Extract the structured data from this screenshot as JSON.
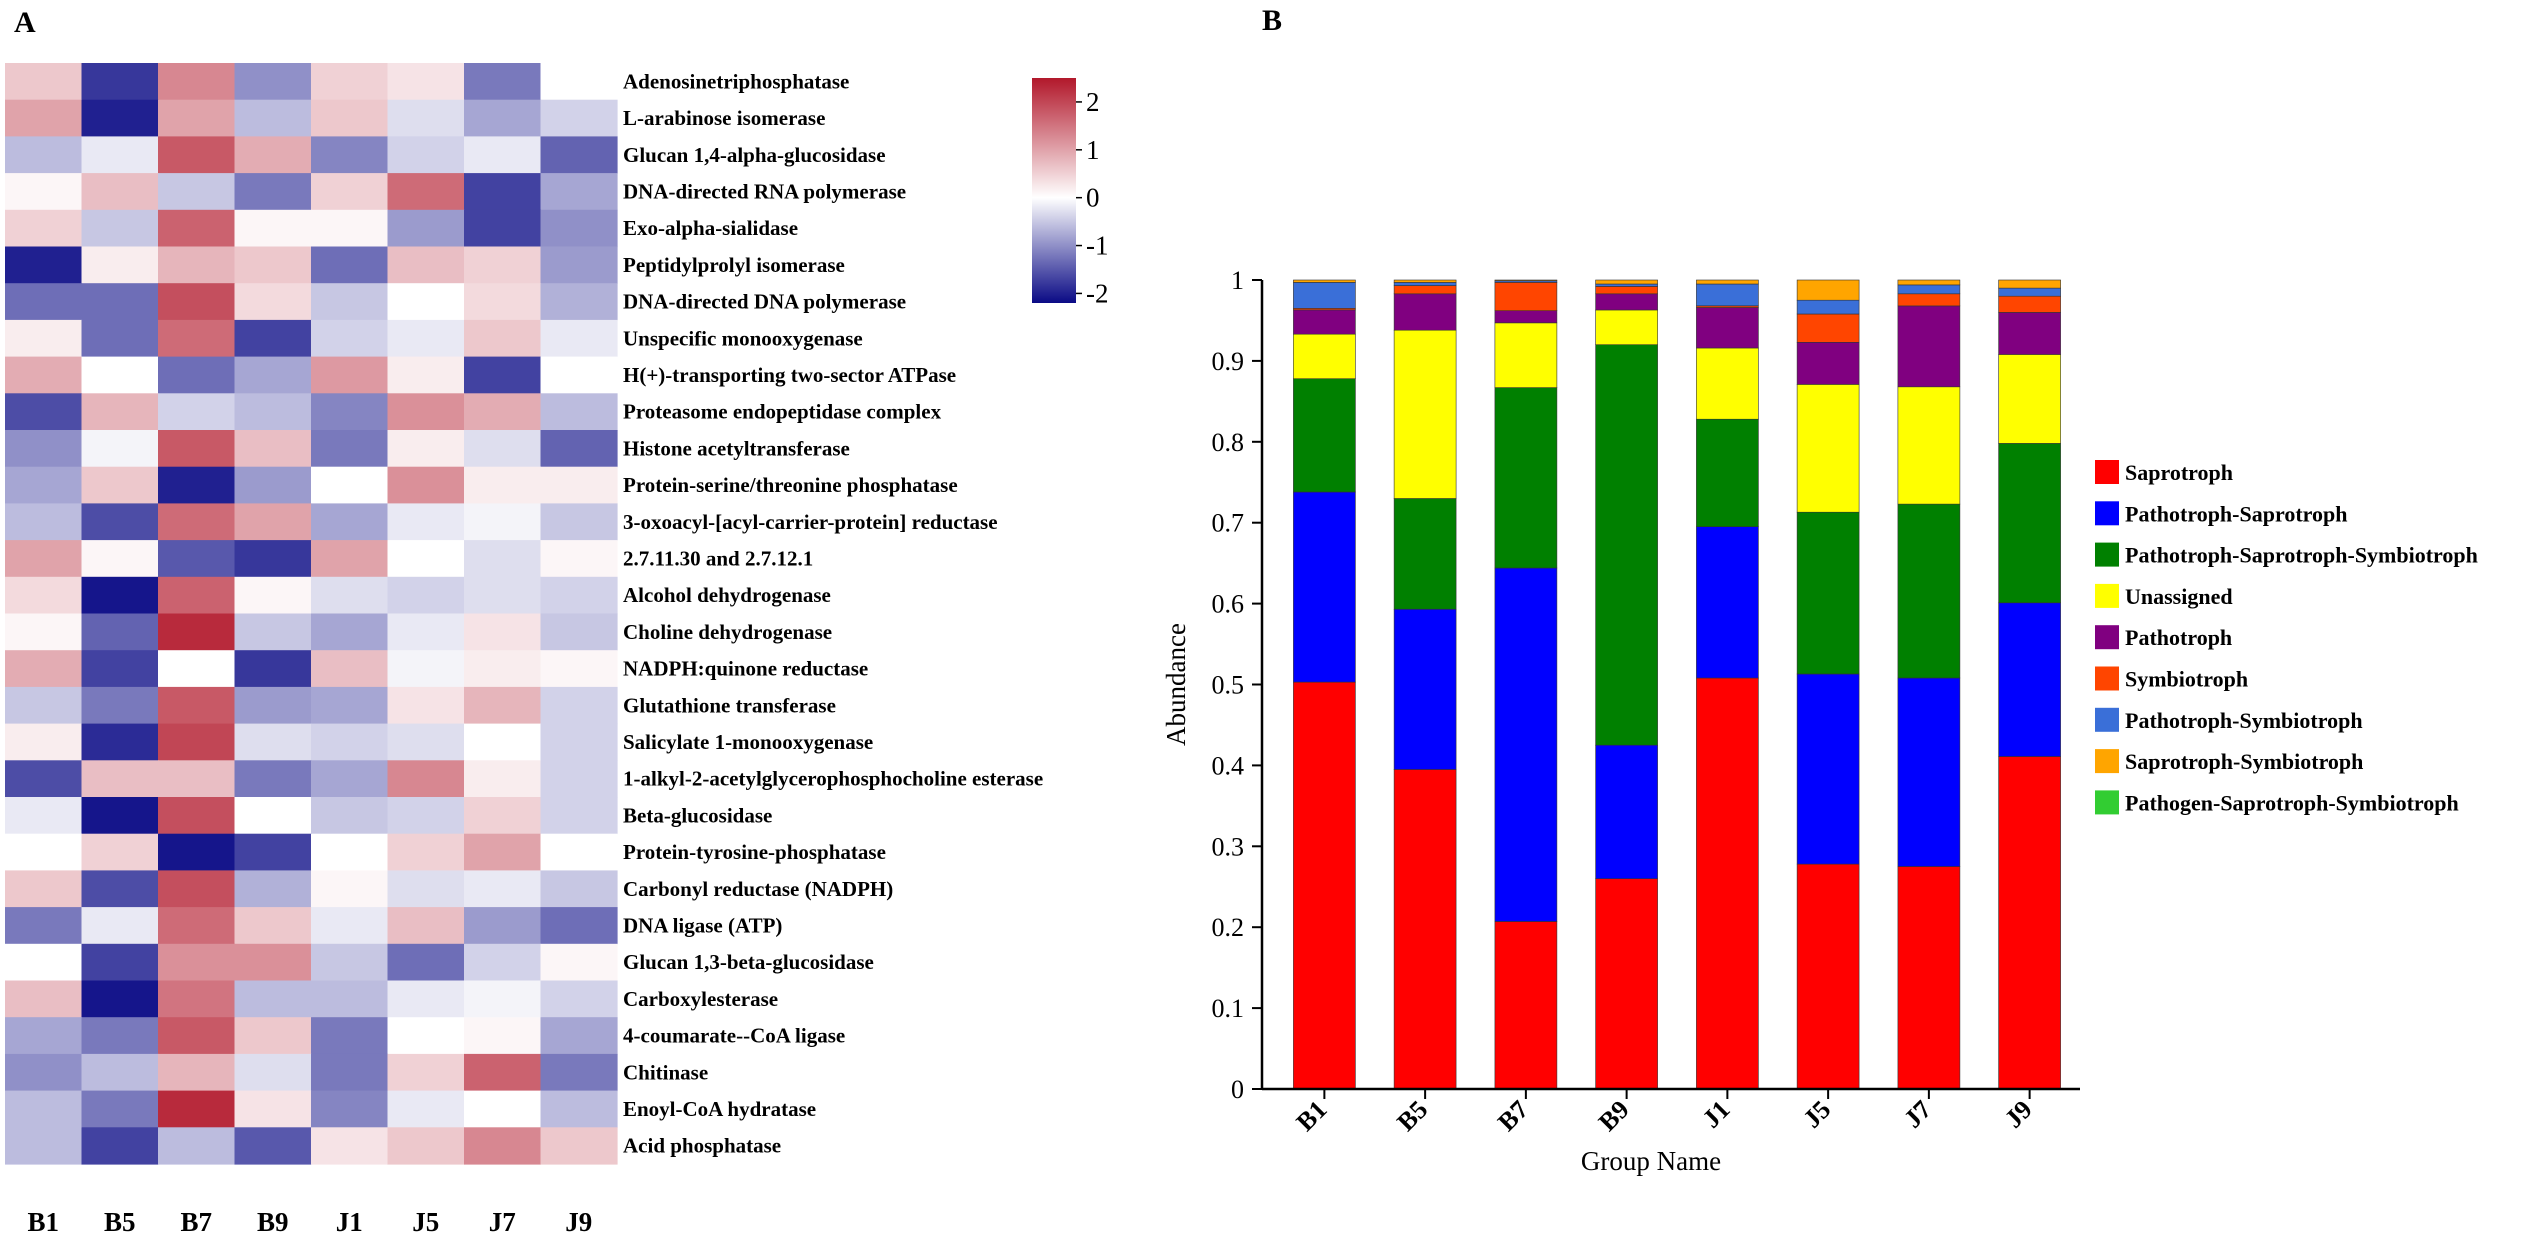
{
  "panel_labels": {
    "a": "A",
    "b": "B"
  },
  "chart_data": [
    {
      "type": "heatmap",
      "panel": "A",
      "columns": [
        "B1",
        "B5",
        "B7",
        "B9",
        "J1",
        "J5",
        "J7",
        "J9"
      ],
      "rows": [
        "Adenosinetriphosphatase",
        "L-arabinose isomerase",
        "Glucan 1,4-alpha-glucosidase",
        "DNA-directed RNA polymerase",
        "Exo-alpha-sialidase",
        "Peptidylprolyl isomerase",
        "DNA-directed DNA polymerase",
        "Unspecific monooxygenase",
        "H(+)-transporting two-sector ATPase",
        "Proteasome endopeptidase complex",
        "Histone acetyltransferase",
        "Protein-serine/threonine phosphatase",
        "3-oxoacyl-[acyl-carrier-protein] reductase",
        "2.7.11.30 and 2.7.12.1",
        "Alcohol dehydrogenase",
        "Choline dehydrogenase",
        "NADPH:quinone reductase",
        "Glutathione transferase",
        "Salicylate 1-monooxygenase",
        "1-alkyl-2-acetylglycerophosphocholine esterase",
        "Beta-glucosidase",
        "Protein-tyrosine-phosphatase",
        "Carbonyl reductase (NADPH)",
        "DNA ligase (ATP)",
        "Glucan 1,3-beta-glucosidase",
        "Carboxylesterase",
        "4-coumarate--CoA ligase",
        "Chitinase",
        "Enoyl-CoA hydratase",
        "Acid phosphatase"
      ],
      "values": [
        [
          0.6,
          -1.8,
          1.3,
          -1.0,
          0.5,
          0.3,
          -1.2,
          0.0
        ],
        [
          1.0,
          -2.0,
          1.0,
          -0.6,
          0.6,
          -0.3,
          -0.8,
          -0.4
        ],
        [
          -0.6,
          -0.2,
          1.8,
          0.9,
          -1.1,
          -0.4,
          -0.2,
          -1.4
        ],
        [
          0.1,
          0.7,
          -0.5,
          -1.2,
          0.5,
          1.6,
          -1.7,
          -0.8
        ],
        [
          0.5,
          -0.5,
          1.7,
          0.1,
          0.1,
          -0.9,
          -1.7,
          -1.0
        ],
        [
          -2.0,
          0.2,
          0.8,
          0.6,
          -1.3,
          0.7,
          0.5,
          -0.9
        ],
        [
          -1.3,
          -1.3,
          1.9,
          0.4,
          -0.5,
          0.0,
          0.4,
          -0.7
        ],
        [
          0.2,
          -1.3,
          1.6,
          -1.7,
          -0.4,
          -0.2,
          0.6,
          -0.2
        ],
        [
          0.9,
          0.0,
          -1.3,
          -0.8,
          1.1,
          0.2,
          -1.7,
          0.0
        ],
        [
          -1.6,
          0.8,
          -0.4,
          -0.6,
          -1.1,
          1.2,
          0.9,
          -0.6
        ],
        [
          -1.0,
          -0.1,
          1.8,
          0.7,
          -1.2,
          0.2,
          -0.3,
          -1.4
        ],
        [
          -0.8,
          0.6,
          -2.0,
          -0.9,
          0.0,
          1.2,
          0.2,
          0.2
        ],
        [
          -0.6,
          -1.6,
          1.6,
          1.0,
          -0.8,
          -0.2,
          -0.1,
          -0.5
        ],
        [
          1.0,
          0.1,
          -1.5,
          -1.8,
          1.0,
          0.0,
          -0.3,
          0.1
        ],
        [
          0.4,
          -2.1,
          1.7,
          0.1,
          -0.3,
          -0.4,
          -0.3,
          -0.4
        ],
        [
          0.1,
          -1.4,
          2.3,
          -0.5,
          -0.8,
          -0.2,
          0.3,
          -0.5
        ],
        [
          0.9,
          -1.7,
          0.0,
          -1.8,
          0.7,
          -0.1,
          0.2,
          0.1
        ],
        [
          -0.5,
          -1.2,
          1.8,
          -0.9,
          -0.8,
          0.3,
          0.8,
          -0.4
        ],
        [
          0.2,
          -1.9,
          2.0,
          -0.3,
          -0.4,
          -0.3,
          0.0,
          -0.4
        ],
        [
          -1.6,
          0.7,
          0.7,
          -1.2,
          -0.8,
          1.3,
          0.2,
          -0.4
        ],
        [
          -0.2,
          -2.1,
          1.9,
          0.0,
          -0.5,
          -0.4,
          0.5,
          -0.4
        ],
        [
          0.0,
          0.5,
          -2.1,
          -1.7,
          0.0,
          0.5,
          1.0,
          0.0
        ],
        [
          0.6,
          -1.6,
          1.9,
          -0.7,
          0.1,
          -0.3,
          -0.2,
          -0.5
        ],
        [
          -1.2,
          -0.2,
          1.6,
          0.6,
          -0.2,
          0.7,
          -0.9,
          -1.3
        ],
        [
          0.0,
          -1.7,
          1.2,
          1.2,
          -0.5,
          -1.3,
          -0.4,
          0.1
        ],
        [
          0.7,
          -2.1,
          1.5,
          -0.6,
          -0.6,
          -0.2,
          -0.1,
          -0.4
        ],
        [
          -0.8,
          -1.2,
          1.8,
          0.6,
          -1.2,
          0.0,
          0.1,
          -0.8
        ],
        [
          -1.0,
          -0.6,
          0.8,
          -0.3,
          -1.2,
          0.5,
          1.7,
          -1.2
        ],
        [
          -0.6,
          -1.2,
          2.3,
          0.3,
          -1.1,
          -0.2,
          0.0,
          -0.6
        ],
        [
          -0.6,
          -1.7,
          -0.6,
          -1.5,
          0.3,
          0.6,
          1.3,
          0.6
        ]
      ],
      "colorbar": {
        "range": [
          -2.2,
          2.5
        ],
        "ticks": [
          2,
          1,
          0,
          -1,
          -2
        ],
        "tick_labels": [
          "2",
          "1",
          "0",
          "-1",
          "-2"
        ]
      },
      "colors": {
        "high": "#b2182b",
        "mid": "#ffffff",
        "low": "#0a0a85"
      }
    },
    {
      "type": "bar",
      "stacked": true,
      "panel": "B",
      "categories": [
        "B1",
        "B5",
        "B7",
        "B9",
        "J1",
        "J5",
        "J7",
        "J9"
      ],
      "xlabel": "Group Name",
      "ylabel": "Abundance",
      "ylim": [
        0,
        1
      ],
      "yticks": [
        0,
        0.1,
        0.2,
        0.3,
        0.4,
        0.5,
        0.6,
        0.7,
        0.8,
        0.9,
        1
      ],
      "ytick_labels": [
        "0",
        "0.1",
        "0.2",
        "0.3",
        "0.4",
        "0.5",
        "0.6",
        "0.7",
        "0.8",
        "0.9",
        "1"
      ],
      "legend_position": "right",
      "series": [
        {
          "name": "Saprotroph",
          "color": "#ff0000",
          "values": [
            0.503,
            0.395,
            0.207,
            0.26,
            0.508,
            0.278,
            0.275,
            0.411
          ]
        },
        {
          "name": "Pathotroph-Saprotroph",
          "color": "#0000ff",
          "values": [
            0.235,
            0.198,
            0.437,
            0.165,
            0.187,
            0.235,
            0.233,
            0.19
          ]
        },
        {
          "name": "Pathotroph-Saprotroph-Symbiotroph",
          "color": "#008000",
          "values": [
            0.14,
            0.137,
            0.223,
            0.495,
            0.133,
            0.2,
            0.215,
            0.197
          ]
        },
        {
          "name": "Unassigned",
          "color": "#ffff00",
          "values": [
            0.055,
            0.208,
            0.08,
            0.043,
            0.088,
            0.158,
            0.145,
            0.11
          ]
        },
        {
          "name": "Pathotroph",
          "color": "#800080",
          "values": [
            0.03,
            0.045,
            0.015,
            0.02,
            0.05,
            0.052,
            0.1,
            0.052
          ]
        },
        {
          "name": "Symbiotroph",
          "color": "#ff4500",
          "values": [
            0.002,
            0.01,
            0.035,
            0.009,
            0.002,
            0.035,
            0.015,
            0.02
          ]
        },
        {
          "name": "Pathotroph-Symbiotroph",
          "color": "#3a6fd8",
          "values": [
            0.032,
            0.004,
            0.002,
            0.003,
            0.027,
            0.017,
            0.011,
            0.01
          ]
        },
        {
          "name": "Saprotroph-Symbiotroph",
          "color": "#ffa500",
          "values": [
            0.003,
            0.003,
            0.001,
            0.005,
            0.005,
            0.025,
            0.006,
            0.01
          ]
        },
        {
          "name": "Pathogen-Saprotroph-Symbiotroph",
          "color": "#32cd32",
          "values": [
            0.0,
            0.0,
            0.0,
            0.0,
            0.0,
            0.0,
            0.0,
            0.0
          ]
        }
      ]
    }
  ]
}
